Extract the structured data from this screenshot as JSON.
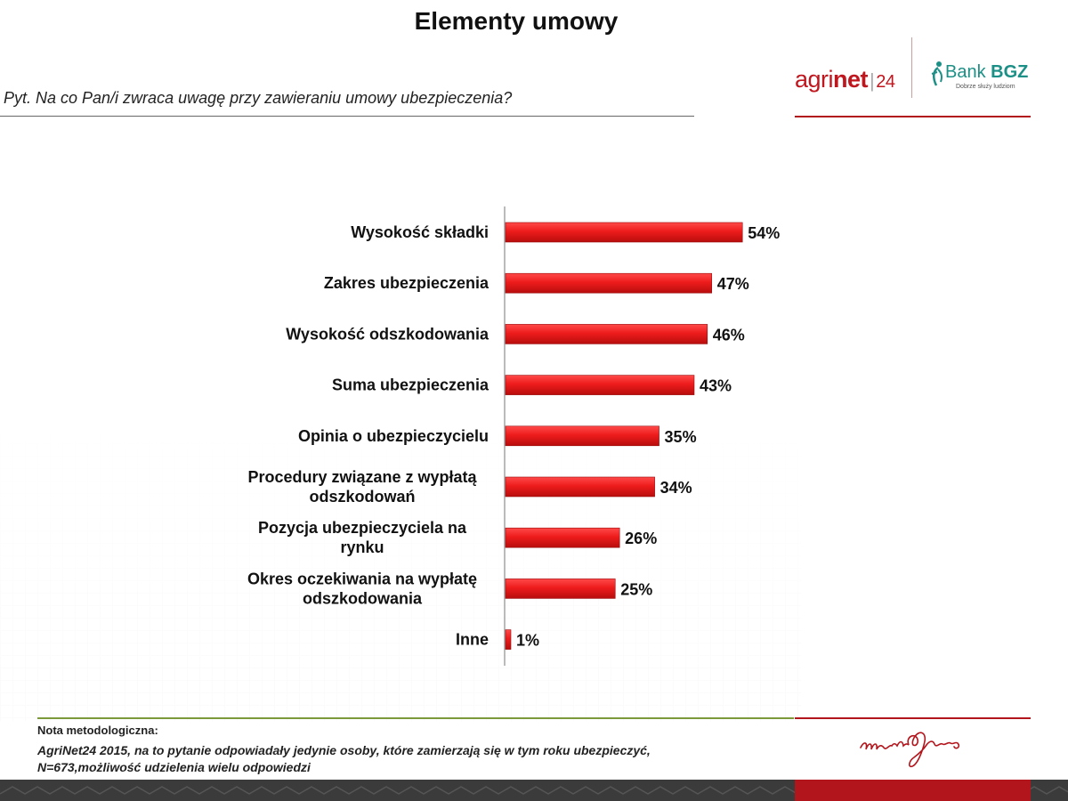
{
  "header": {
    "title": "Elementy umowy",
    "question": "Pyt. Na co Pan/i zwraca uwagę przy zawieraniu umowy ubezpieczenia?"
  },
  "logos": {
    "agrinet_light": "agri",
    "agrinet_bold": "net",
    "agrinet_num": "24",
    "bank_light": "Bank",
    "bank_bold": "BGZ",
    "bank_tagline": "Dobrze służy ludziom",
    "signature": "martin&jacob"
  },
  "footer": {
    "note_title": "Nota metodologiczna:",
    "note_line1": "AgriNet24 2015, na to pytanie odpowiadały jedynie osoby, które zamierzają się w tym roku ubezpieczyć,",
    "note_line2": "N=673,możliwość udzielenia wielu odpowiedzi"
  },
  "colors": {
    "bar": "#e8151b",
    "accent_red": "#b3151c",
    "accent_green": "#7d9a3a"
  },
  "chart_data": {
    "type": "bar",
    "orientation": "horizontal",
    "categories": [
      [
        "Wysokość składki"
      ],
      [
        "Zakres ubezpieczenia"
      ],
      [
        "Wysokość odszkodowania"
      ],
      [
        "Suma ubezpieczenia"
      ],
      [
        "Opinia o ubezpieczycielu"
      ],
      [
        "Procedury związane z wypłatą",
        "odszkodowań"
      ],
      [
        "Pozycja ubezpieczyciela na",
        "rynku"
      ],
      [
        "Okres oczekiwania na wypłatę",
        "odszkodowania"
      ],
      [
        "Inne"
      ]
    ],
    "values": [
      54,
      47,
      46,
      43,
      35,
      34,
      26,
      25,
      1
    ],
    "data_labels": [
      "54%",
      "47%",
      "46%",
      "43%",
      "35%",
      "34%",
      "26%",
      "25%",
      "1%"
    ],
    "unit": "%",
    "grid": false,
    "legend": "none"
  }
}
